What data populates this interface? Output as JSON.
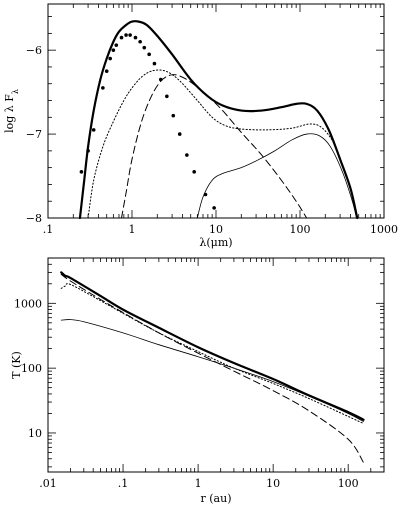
{
  "chart_data": [
    {
      "type": "line",
      "xlabel": "λ(μm)",
      "ylabel": "log λ F_λ",
      "xscale": "log",
      "xlim": [
        0.1,
        1000
      ],
      "ylim": [
        -8,
        -5.45
      ],
      "xticks": [
        {
          "value": 0.1,
          "label": ".1"
        },
        {
          "value": 1,
          "label": "1"
        },
        {
          "value": 10,
          "label": "10"
        },
        {
          "value": 100,
          "label": "100"
        },
        {
          "value": 1000,
          "label": "1000"
        }
      ],
      "yticks": [
        {
          "value": -6,
          "label": "−6"
        },
        {
          "value": -7,
          "label": "−7"
        },
        {
          "value": -8,
          "label": "−8"
        }
      ],
      "grid": false,
      "series": [
        {
          "style": "thick-solid",
          "points": [
            [
              0.24,
              -8.0
            ],
            [
              0.27,
              -7.55
            ],
            [
              0.3,
              -7.15
            ],
            [
              0.35,
              -6.72
            ],
            [
              0.42,
              -6.35
            ],
            [
              0.5,
              -6.1
            ],
            [
              0.6,
              -5.9
            ],
            [
              0.7,
              -5.78
            ],
            [
              0.85,
              -5.7
            ],
            [
              1.0,
              -5.66
            ],
            [
              1.2,
              -5.66
            ],
            [
              1.5,
              -5.7
            ],
            [
              2.0,
              -5.83
            ],
            [
              3.0,
              -6.05
            ],
            [
              5.0,
              -6.35
            ],
            [
              8.0,
              -6.55
            ],
            [
              12.0,
              -6.66
            ],
            [
              20.0,
              -6.72
            ],
            [
              35.0,
              -6.72
            ],
            [
              60.0,
              -6.68
            ],
            [
              90.0,
              -6.64
            ],
            [
              120.0,
              -6.64
            ],
            [
              160.0,
              -6.72
            ],
            [
              220.0,
              -6.95
            ],
            [
              300.0,
              -7.3
            ],
            [
              400.0,
              -7.65
            ],
            [
              480.0,
              -8.0
            ]
          ]
        },
        {
          "style": "dotted",
          "points": [
            [
              0.3,
              -8.0
            ],
            [
              0.35,
              -7.55
            ],
            [
              0.45,
              -7.15
            ],
            [
              0.6,
              -6.85
            ],
            [
              0.8,
              -6.6
            ],
            [
              1.0,
              -6.45
            ],
            [
              1.3,
              -6.32
            ],
            [
              1.7,
              -6.25
            ],
            [
              2.3,
              -6.24
            ],
            [
              3.0,
              -6.29
            ],
            [
              4.0,
              -6.4
            ],
            [
              6.0,
              -6.6
            ],
            [
              9.0,
              -6.8
            ],
            [
              13.0,
              -6.9
            ],
            [
              20.0,
              -6.94
            ],
            [
              40.0,
              -6.95
            ],
            [
              80.0,
              -6.93
            ],
            [
              130.0,
              -6.88
            ],
            [
              180.0,
              -6.92
            ],
            [
              250.0,
              -7.1
            ],
            [
              330.0,
              -7.4
            ],
            [
              420.0,
              -7.75
            ],
            [
              480.0,
              -8.0
            ]
          ]
        },
        {
          "style": "dashed",
          "points": [
            [
              0.75,
              -8.0
            ],
            [
              0.85,
              -7.7
            ],
            [
              1.0,
              -7.3
            ],
            [
              1.3,
              -6.85
            ],
            [
              1.7,
              -6.55
            ],
            [
              2.2,
              -6.37
            ],
            [
              2.8,
              -6.3
            ],
            [
              3.5,
              -6.3
            ],
            [
              5.0,
              -6.38
            ],
            [
              8.0,
              -6.55
            ],
            [
              12.0,
              -6.72
            ],
            [
              20.0,
              -6.98
            ],
            [
              35.0,
              -7.25
            ],
            [
              60.0,
              -7.55
            ],
            [
              90.0,
              -7.8
            ],
            [
              120.0,
              -8.0
            ]
          ]
        },
        {
          "style": "thin-solid",
          "points": [
            [
              6.0,
              -8.0
            ],
            [
              7.0,
              -7.75
            ],
            [
              9.0,
              -7.55
            ],
            [
              12.0,
              -7.47
            ],
            [
              20.0,
              -7.4
            ],
            [
              30.0,
              -7.32
            ],
            [
              50.0,
              -7.2
            ],
            [
              80.0,
              -7.07
            ],
            [
              120.0,
              -7.0
            ],
            [
              170.0,
              -7.02
            ],
            [
              230.0,
              -7.15
            ],
            [
              320.0,
              -7.45
            ],
            [
              420.0,
              -7.8
            ],
            [
              470.0,
              -8.0
            ]
          ]
        },
        {
          "style": "points",
          "points": [
            [
              0.25,
              -7.45
            ],
            [
              0.3,
              -7.2
            ],
            [
              0.35,
              -6.95
            ],
            [
              0.45,
              -6.45
            ],
            [
              0.5,
              -6.25
            ],
            [
              0.55,
              -6.1
            ],
            [
              0.6,
              -6.0
            ],
            [
              0.65,
              -5.94
            ],
            [
              0.75,
              -5.85
            ],
            [
              0.85,
              -5.82
            ],
            [
              0.95,
              -5.82
            ],
            [
              1.1,
              -5.85
            ],
            [
              1.25,
              -5.9
            ],
            [
              1.4,
              -5.97
            ],
            [
              1.6,
              -6.05
            ],
            [
              1.85,
              -6.16
            ],
            [
              2.2,
              -6.35
            ],
            [
              2.6,
              -6.55
            ],
            [
              3.1,
              -6.78
            ],
            [
              3.7,
              -7.0
            ],
            [
              4.5,
              -7.25
            ],
            [
              5.5,
              -7.45
            ],
            [
              7.5,
              -7.72
            ],
            [
              9.5,
              -7.88
            ]
          ]
        }
      ]
    },
    {
      "type": "line",
      "xlabel": "r (au)",
      "ylabel": "T (K)",
      "xscale": "log",
      "yscale": "log",
      "xlim": [
        0.01,
        300
      ],
      "ylim": [
        2.5,
        5000
      ],
      "xticks": [
        {
          "value": 0.01,
          "label": ".01"
        },
        {
          "value": 0.1,
          "label": ".1"
        },
        {
          "value": 1,
          "label": "1"
        },
        {
          "value": 10,
          "label": "10"
        },
        {
          "value": 100,
          "label": "100"
        }
      ],
      "yticks": [
        {
          "value": 10,
          "label": "10"
        },
        {
          "value": 100,
          "label": "100"
        },
        {
          "value": 1000,
          "label": "1000"
        }
      ],
      "grid": false,
      "series": [
        {
          "style": "thick-solid",
          "points": [
            [
              0.015,
              3000
            ],
            [
              0.017,
              2650
            ],
            [
              0.02,
              2450
            ],
            [
              0.05,
              1300
            ],
            [
              0.1,
              800
            ],
            [
              0.3,
              420
            ],
            [
              1.0,
              210
            ],
            [
              3.0,
              120
            ],
            [
              10.0,
              68
            ],
            [
              30.0,
              38
            ],
            [
              100.0,
              21
            ],
            [
              160.0,
              16
            ]
          ]
        },
        {
          "style": "dotted",
          "points": [
            [
              0.015,
              1700
            ],
            [
              0.017,
              1850
            ],
            [
              0.02,
              1950
            ],
            [
              0.05,
              1100
            ],
            [
              0.1,
              700
            ],
            [
              0.3,
              350
            ],
            [
              1.0,
              180
            ],
            [
              3.0,
              100
            ],
            [
              10.0,
              58
            ],
            [
              30.0,
              34
            ],
            [
              100.0,
              18
            ],
            [
              160.0,
              14
            ]
          ]
        },
        {
          "style": "dashed",
          "points": [
            [
              0.015,
              2800
            ],
            [
              0.02,
              2200
            ],
            [
              0.05,
              1150
            ],
            [
              0.1,
              720
            ],
            [
              0.3,
              350
            ],
            [
              1.0,
              170
            ],
            [
              3.0,
              90
            ],
            [
              10.0,
              45
            ],
            [
              30.0,
              22
            ],
            [
              100.0,
              8
            ],
            [
              160.0,
              3.5
            ]
          ]
        },
        {
          "style": "thin-solid",
          "points": [
            [
              0.015,
              550
            ],
            [
              0.02,
              560
            ],
            [
              0.03,
              520
            ],
            [
              0.1,
              350
            ],
            [
              0.3,
              230
            ],
            [
              1.0,
              150
            ],
            [
              3.0,
              100
            ],
            [
              10.0,
              62
            ],
            [
              30.0,
              37
            ],
            [
              100.0,
              20
            ],
            [
              160.0,
              15
            ]
          ]
        }
      ]
    }
  ]
}
